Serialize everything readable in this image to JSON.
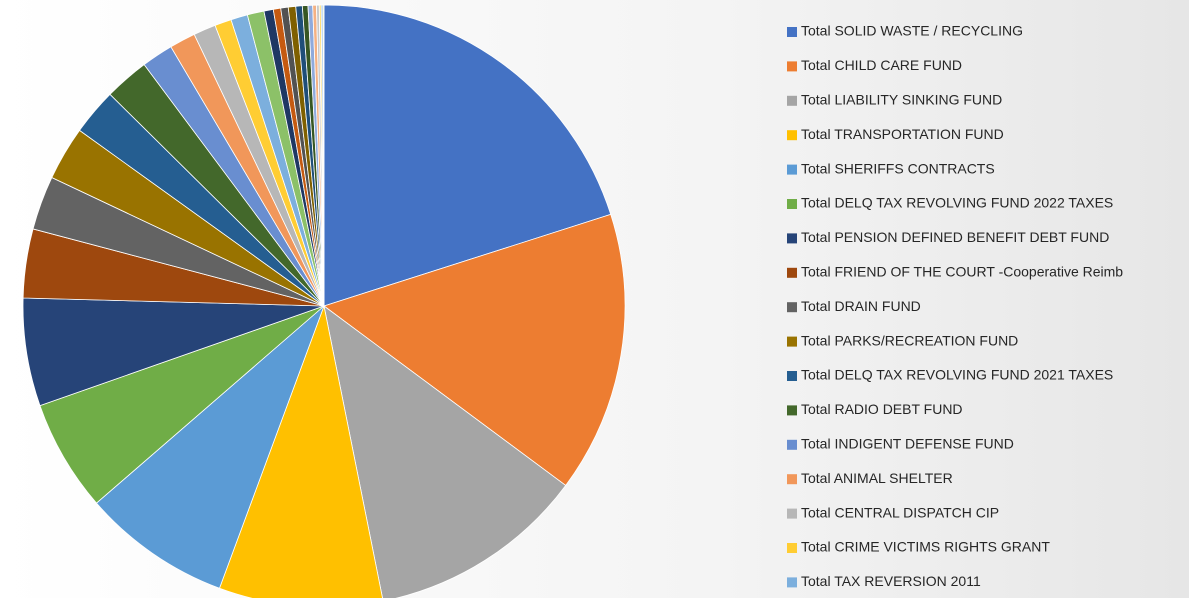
{
  "chart_data": {
    "type": "pie",
    "categories": [
      "Total SOLID WASTE / RECYCLING",
      "Total CHILD CARE FUND",
      "Total LIABILITY SINKING FUND",
      "Total TRANSPORTATION FUND",
      "Total SHERIFFS CONTRACTS",
      "Total DELQ TAX REVOLVING FUND 2022 TAXES",
      "Total PENSION DEFINED BENEFIT DEBT FUND",
      "Total FRIEND OF THE COURT -Cooperative Reimb",
      "Total DRAIN FUND",
      "Total PARKS/RECREATION FUND",
      "Total DELQ TAX REVOLVING FUND 2021 TAXES",
      "Total RADIO DEBT FUND",
      "Total INDIGENT DEFENSE FUND",
      "Total ANIMAL SHELTER",
      "Total CENTRAL DISPATCH CIP",
      "Total CRIME VICTIMS RIGHTS GRANT",
      "Total TAX REVERSION 2011",
      null,
      null,
      null,
      null,
      null,
      null,
      null,
      null,
      null,
      null,
      null,
      null,
      null
    ],
    "values": [
      20.1,
      15.1,
      11.7,
      8.8,
      8.0,
      6.0,
      5.8,
      3.7,
      2.9,
      2.9,
      2.5,
      2.4,
      1.7,
      1.4,
      1.2,
      0.9,
      0.9,
      0.9,
      0.5,
      0.4,
      0.4,
      0.4,
      0.35,
      0.3,
      0.25,
      0.2,
      0.15,
      0.1,
      0.1,
      0.05
    ],
    "colors": [
      "#4472c4",
      "#ed7d31",
      "#a5a5a5",
      "#ffc000",
      "#5b9bd5",
      "#70ad47",
      "#264478",
      "#9e480e",
      "#636363",
      "#997300",
      "#255e91",
      "#43682b",
      "#698ed0",
      "#f1975a",
      "#b7b7b7",
      "#ffcd33",
      "#7cafdd",
      "#8cc168",
      "#1f3864",
      "#c55a11",
      "#525252",
      "#7f6000",
      "#1f4e79",
      "#375623",
      "#8faadc",
      "#f4b183",
      "#c9c9c9",
      "#ffd966",
      "#9dc3e6",
      "#a9d18e"
    ]
  }
}
